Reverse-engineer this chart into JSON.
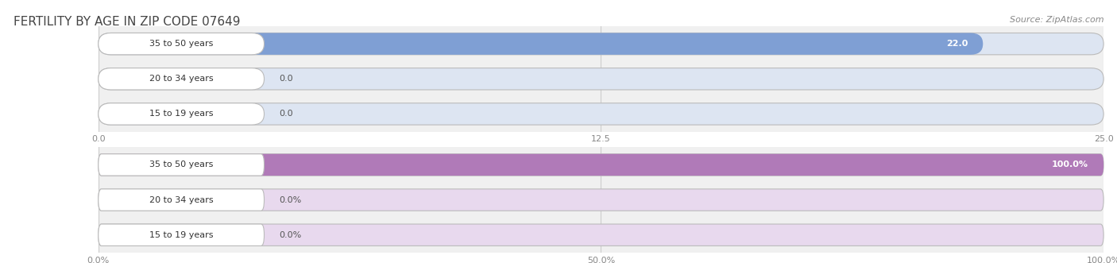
{
  "title": "FERTILITY BY AGE IN ZIP CODE 07649",
  "source": "Source: ZipAtlas.com",
  "top_chart": {
    "categories": [
      "15 to 19 years",
      "20 to 34 years",
      "35 to 50 years"
    ],
    "values": [
      0.0,
      0.0,
      22.0
    ],
    "xlim": [
      0,
      25.0
    ],
    "xticks": [
      0.0,
      12.5,
      25.0
    ],
    "xtick_labels": [
      "0.0",
      "12.5",
      "25.0"
    ],
    "bar_color": "#7f9fd4",
    "bar_bg_color": "#dde5f2",
    "label_color_inside": "#ffffff",
    "label_color_outside": "#555555",
    "value_threshold": 20.0,
    "pct": false
  },
  "bottom_chart": {
    "categories": [
      "15 to 19 years",
      "20 to 34 years",
      "35 to 50 years"
    ],
    "values": [
      0.0,
      0.0,
      100.0
    ],
    "xlim": [
      0,
      100.0
    ],
    "xticks": [
      0.0,
      50.0,
      100.0
    ],
    "xtick_labels": [
      "0.0%",
      "50.0%",
      "100.0%"
    ],
    "bar_color": "#b07ab8",
    "bar_bg_color": "#e8d9ee",
    "label_color_inside": "#ffffff",
    "label_color_outside": "#555555",
    "value_threshold": 80.0,
    "pct": true
  },
  "bar_height": 0.62,
  "label_fontsize": 8.0,
  "category_fontsize": 8.0,
  "title_fontsize": 11,
  "source_fontsize": 8,
  "title_color": "#444444",
  "source_color": "#888888",
  "category_color": "#333333",
  "tick_color": "#888888",
  "grid_color": "#cccccc",
  "bg_color": "#f0f0f0",
  "border_color": "#bbbbbb"
}
